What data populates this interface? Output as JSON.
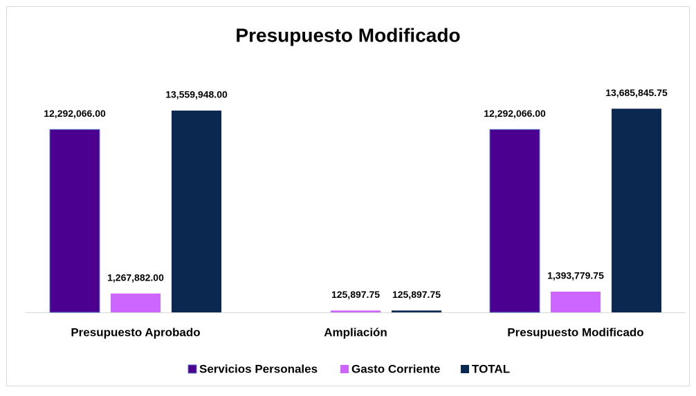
{
  "chart_data": {
    "type": "bar",
    "title": "Presupuesto Modificado",
    "categories": [
      "Presupuesto Aprobado",
      "Ampliación",
      "Presupuesto Modificado"
    ],
    "series": [
      {
        "name": "Servicios Personales",
        "color": "#4b0090",
        "values": [
          12292066.0,
          null,
          12292066.0
        ],
        "value_labels": [
          "12,292,066.00",
          null,
          "12,292,066.00"
        ]
      },
      {
        "name": "Gasto Corriente",
        "color": "#cc66ff",
        "values": [
          1267882.0,
          125897.75,
          1393779.75
        ],
        "value_labels": [
          "1,267,882.00",
          "125,897.75",
          "1,393,779.75"
        ]
      },
      {
        "name": "TOTAL",
        "color": "#0b2850",
        "values": [
          13559948.0,
          125897.75,
          13685845.75
        ],
        "value_labels": [
          "13,559,948.00",
          "125,897.75",
          "13,685,845.75"
        ]
      }
    ],
    "ylim": [
      0,
      15000000
    ],
    "grid": false,
    "legend": "bottom"
  }
}
